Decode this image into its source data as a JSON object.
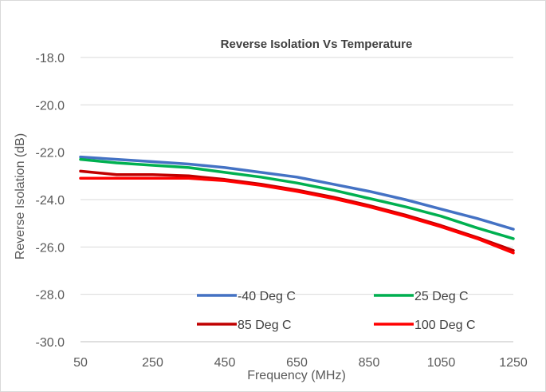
{
  "chart_data": {
    "type": "line",
    "title": "Reverse Isolation Vs Temperature",
    "xlabel": "Frequency (MHz)",
    "ylabel": "Reverse Isolation (dB)",
    "xlim": [
      50,
      1250
    ],
    "ylim": [
      -30.0,
      -18.0
    ],
    "x_ticks": [
      "50",
      "250",
      "450",
      "650",
      "850",
      "1050",
      "1250"
    ],
    "y_ticks": [
      "-18.0",
      "-20.0",
      "-22.0",
      "-24.0",
      "-26.0",
      "-28.0",
      "-30.0"
    ],
    "grid": "horizontal",
    "legend": "inside-bottom",
    "x": [
      50,
      150,
      250,
      350,
      450,
      550,
      650,
      750,
      850,
      950,
      1050,
      1150,
      1250
    ],
    "series": [
      {
        "name": "-40 Deg C",
        "color": "#4472c4",
        "values": [
          -22.2,
          -22.3,
          -22.4,
          -22.5,
          -22.65,
          -22.85,
          -23.05,
          -23.35,
          -23.65,
          -24.0,
          -24.4,
          -24.8,
          -25.25
        ]
      },
      {
        "name": "25 Deg C",
        "color": "#00b050",
        "values": [
          -22.3,
          -22.45,
          -22.55,
          -22.65,
          -22.85,
          -23.05,
          -23.3,
          -23.6,
          -23.95,
          -24.3,
          -24.7,
          -25.2,
          -25.65
        ]
      },
      {
        "name": "85 Deg C",
        "color": "#c00000",
        "values": [
          -22.8,
          -22.95,
          -22.95,
          -23.0,
          -23.15,
          -23.35,
          -23.6,
          -23.9,
          -24.25,
          -24.65,
          -25.1,
          -25.6,
          -26.15
        ]
      },
      {
        "name": "100 Deg C",
        "color": "#ff0000",
        "values": [
          -23.1,
          -23.1,
          -23.1,
          -23.1,
          -23.2,
          -23.4,
          -23.65,
          -23.95,
          -24.3,
          -24.7,
          -25.15,
          -25.65,
          -26.25
        ]
      }
    ]
  }
}
